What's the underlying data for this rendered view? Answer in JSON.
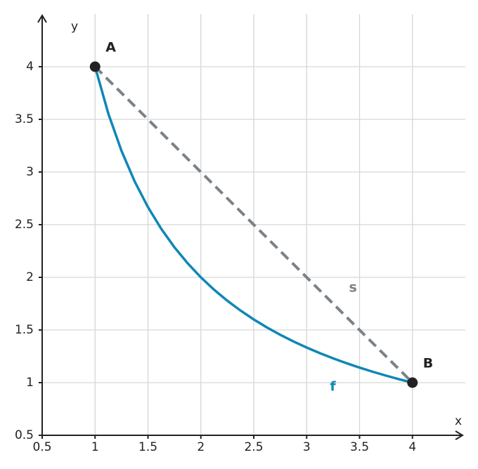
{
  "chart_data": {
    "type": "function-plot",
    "x_label": "x",
    "y_label": "y",
    "xlim": [
      0.5,
      4.5
    ],
    "ylim": [
      0.5,
      4.5
    ],
    "xticks": [
      0.5,
      1,
      1.5,
      2,
      2.5,
      3,
      3.5,
      4
    ],
    "yticks": [
      0.5,
      1,
      1.5,
      2,
      2.5,
      3,
      3.5,
      4
    ],
    "grid": true,
    "series": [
      {
        "name": "f",
        "color": "#0f87b5",
        "dashed": false,
        "x": [
          1,
          1.125,
          1.25,
          1.375,
          1.5,
          1.625,
          1.75,
          1.875,
          2,
          2.125,
          2.25,
          2.375,
          2.5,
          2.625,
          2.75,
          2.875,
          3,
          3.125,
          3.25,
          3.375,
          3.5,
          3.625,
          3.75,
          3.875,
          4
        ],
        "values": [
          4,
          3.5556,
          3.2,
          2.9091,
          2.6667,
          2.4615,
          2.2857,
          2.1333,
          2,
          1.8824,
          1.7778,
          1.6842,
          1.6,
          1.5238,
          1.4545,
          1.3913,
          1.3333,
          1.28,
          1.2308,
          1.1852,
          1.1429,
          1.1034,
          1.0667,
          1.0323,
          1
        ]
      },
      {
        "name": "s",
        "color": "#7a8288",
        "dashed": true,
        "x": [
          1,
          4
        ],
        "values": [
          4,
          1
        ]
      }
    ],
    "points": [
      {
        "name": "A",
        "x": 1,
        "y": 4
      },
      {
        "name": "B",
        "x": 4,
        "y": 1
      }
    ]
  }
}
